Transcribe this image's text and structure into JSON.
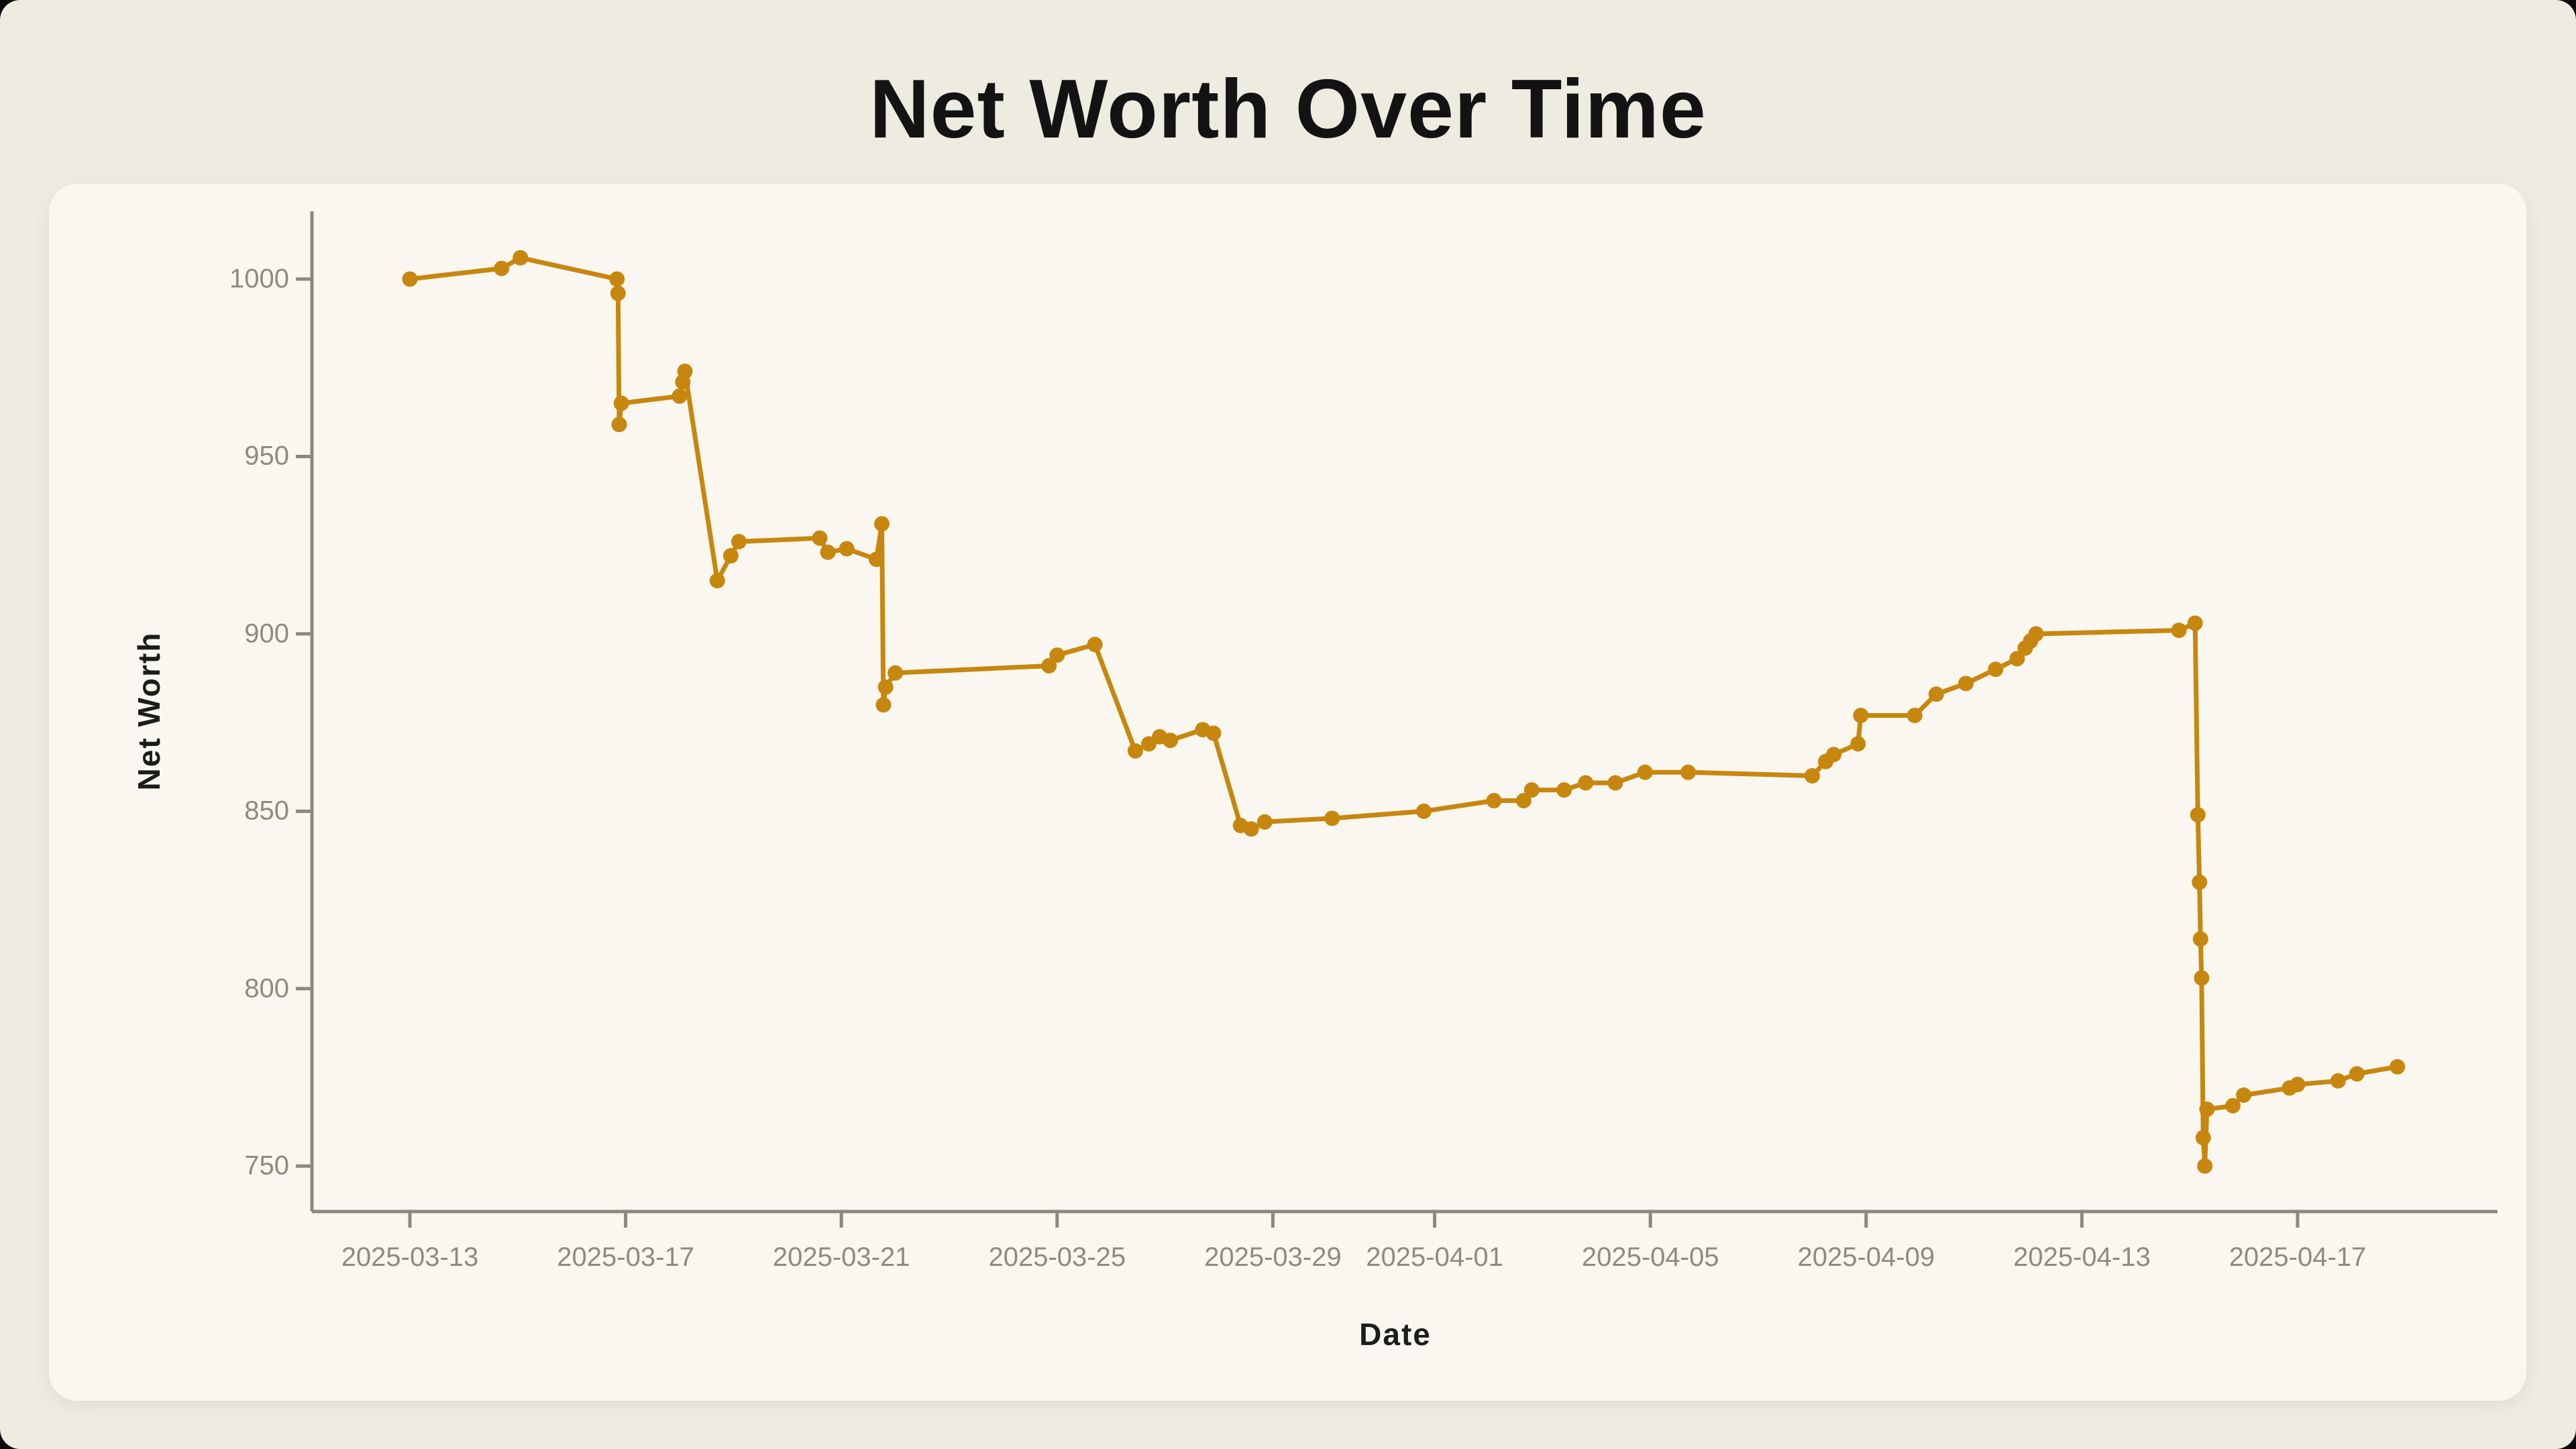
{
  "page": {
    "title": "Net Worth Over Time"
  },
  "style": {
    "page_bg": "#EEECE1",
    "card_bg": "#F9F7EF",
    "outer_corner_bg": "#0b0b0e",
    "line_color": "#C7870F",
    "axis_color": "#8B897E",
    "tick_label_color": "#8E8B7E",
    "title_color": "#131313",
    "axis_title_color": "#1c1c1c"
  },
  "chart_data": {
    "type": "line",
    "title": "Net Worth Over Time",
    "xlabel": "Date",
    "ylabel": "Net Worth",
    "legend": "none",
    "grid": false,
    "x_axis": {
      "start_date": "2025-03-13",
      "tick_labels": [
        "2025-03-13",
        "2025-03-17",
        "2025-03-21",
        "2025-03-25",
        "2025-03-29",
        "2025-04-01",
        "2025-04-05",
        "2025-04-09",
        "2025-04-13",
        "2025-04-17"
      ],
      "tick_day_offsets": [
        0,
        4,
        8,
        12,
        16,
        19,
        23,
        27,
        31,
        35
      ]
    },
    "y_axis": {
      "tick_values": [
        750,
        800,
        850,
        900,
        950,
        1000
      ],
      "range": [
        737,
        1019
      ]
    },
    "series": [
      {
        "name": "Net Worth",
        "color": "#C7870F",
        "marker": "circle",
        "points_note": "x = days since 2025-03-13 (fractional = intraday), y = net worth",
        "points": [
          [
            0.0,
            1000
          ],
          [
            1.7,
            1003
          ],
          [
            2.05,
            1006
          ],
          [
            3.84,
            1000
          ],
          [
            3.86,
            996
          ],
          [
            3.88,
            959
          ],
          [
            3.92,
            965
          ],
          [
            5.0,
            967
          ],
          [
            5.06,
            971
          ],
          [
            5.1,
            974
          ],
          [
            5.7,
            915
          ],
          [
            5.95,
            922
          ],
          [
            6.1,
            926
          ],
          [
            7.6,
            927
          ],
          [
            7.75,
            923
          ],
          [
            8.1,
            924
          ],
          [
            8.65,
            921
          ],
          [
            8.75,
            931
          ],
          [
            8.78,
            880
          ],
          [
            8.82,
            885
          ],
          [
            9.0,
            889
          ],
          [
            11.85,
            891
          ],
          [
            12.0,
            894
          ],
          [
            12.7,
            897
          ],
          [
            13.45,
            867
          ],
          [
            13.7,
            869
          ],
          [
            13.9,
            871
          ],
          [
            14.1,
            870
          ],
          [
            14.7,
            873
          ],
          [
            14.9,
            872
          ],
          [
            15.4,
            846
          ],
          [
            15.6,
            845
          ],
          [
            15.85,
            847
          ],
          [
            17.1,
            848
          ],
          [
            18.8,
            850
          ],
          [
            20.1,
            853
          ],
          [
            20.65,
            853
          ],
          [
            20.8,
            856
          ],
          [
            21.4,
            856
          ],
          [
            21.8,
            858
          ],
          [
            22.35,
            858
          ],
          [
            22.9,
            861
          ],
          [
            23.7,
            861
          ],
          [
            26.0,
            860
          ],
          [
            26.25,
            864
          ],
          [
            26.4,
            866
          ],
          [
            26.85,
            869
          ],
          [
            26.9,
            877
          ],
          [
            27.9,
            877
          ],
          [
            28.3,
            883
          ],
          [
            28.85,
            886
          ],
          [
            29.4,
            890
          ],
          [
            29.8,
            893
          ],
          [
            29.95,
            896
          ],
          [
            30.05,
            898
          ],
          [
            30.15,
            900
          ],
          [
            32.8,
            901
          ],
          [
            33.1,
            903
          ],
          [
            33.15,
            849
          ],
          [
            33.18,
            830
          ],
          [
            33.2,
            814
          ],
          [
            33.22,
            803
          ],
          [
            33.25,
            758
          ],
          [
            33.28,
            750
          ],
          [
            33.32,
            766
          ],
          [
            33.8,
            767
          ],
          [
            34.0,
            770
          ],
          [
            34.85,
            772
          ],
          [
            35.0,
            773
          ],
          [
            35.75,
            774
          ],
          [
            36.1,
            776
          ],
          [
            36.85,
            778
          ]
        ]
      }
    ]
  }
}
